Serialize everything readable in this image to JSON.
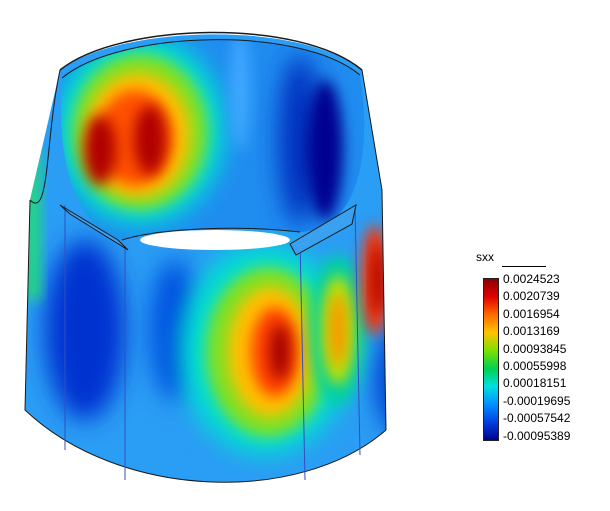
{
  "legend": {
    "title": "sxx",
    "ticks": [
      "0.0024523",
      "0.0020739",
      "0.0016954",
      "0.0013169",
      "0.00093845",
      "0.00055998",
      "0.00018151",
      "-0.00019695",
      "-0.00057542",
      "-0.00095389"
    ],
    "colors": [
      "#8b0000",
      "#e00000",
      "#ff6a00",
      "#ffc400",
      "#7ee000",
      "#00d050",
      "#00e0e0",
      "#0090ff",
      "#0040e0",
      "#000090"
    ]
  },
  "model": {
    "base_color": "#2a9df4",
    "outline_color": "#1a1a1a"
  }
}
